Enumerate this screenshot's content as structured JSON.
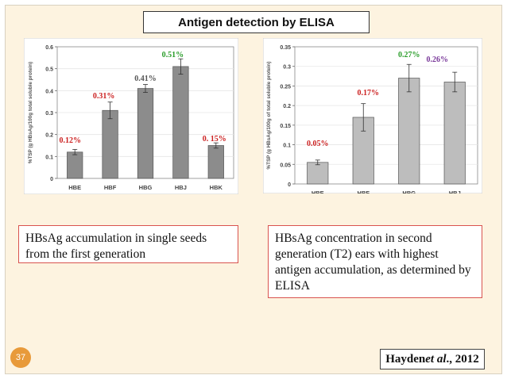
{
  "slide": {
    "title": "Antigen detection by ELISA",
    "number": "37",
    "citation": {
      "author": "Hayden ",
      "etal": "et al",
      "year": "., 2012"
    },
    "captions": {
      "left": "HBsAg accumulation in single seeds from the first generation",
      "right": "HBsAg concentration in second generation (T2) ears with highest antigen accumulation, as determined by ELISA"
    }
  },
  "chart_data": [
    {
      "type": "bar",
      "ylabel": "%TSP (g HBsAg/100g total soluble protein)",
      "ylim": [
        0,
        0.6
      ],
      "yticks": [
        "0",
        "0.1",
        "0.2",
        "0.3",
        "0.4",
        "0.5",
        "0.6"
      ],
      "categories": [
        "HBE",
        "HBF",
        "HBG",
        "HBJ",
        "HBK"
      ],
      "values": [
        0.12,
        0.31,
        0.41,
        0.51,
        0.15
      ],
      "errors": [
        0.012,
        0.038,
        0.018,
        0.035,
        0.012
      ],
      "data_labels": [
        "0.12%",
        "0.31%",
        "0.41%",
        "0.51%",
        "0. 15%"
      ],
      "label_colors": [
        "#cc2222",
        "#cc2222",
        "#555555",
        "#2a9d2a",
        "#cc2222"
      ],
      "bar_color": "#8c8c8c"
    },
    {
      "type": "bar",
      "ylabel": "%TSP (g HBsAg/100g of total soluble protein)",
      "ylim": [
        0,
        0.35
      ],
      "yticks": [
        "0",
        "0.05",
        "0.1",
        "0.15",
        "0.2",
        "0.25",
        "0.3",
        "0.35"
      ],
      "categories": [
        "HBE",
        "HBF",
        "HBG",
        "HBJ"
      ],
      "values": [
        0.055,
        0.17,
        0.27,
        0.26
      ],
      "errors": [
        0.006,
        0.035,
        0.035,
        0.025
      ],
      "data_labels": [
        "0.05%",
        "0.17%",
        "0.27%",
        "0.26%"
      ],
      "label_colors": [
        "#cc2222",
        "#cc2222",
        "#2a9d2a",
        "#7a3a9a"
      ],
      "bar_color": "#bdbdbd"
    }
  ]
}
